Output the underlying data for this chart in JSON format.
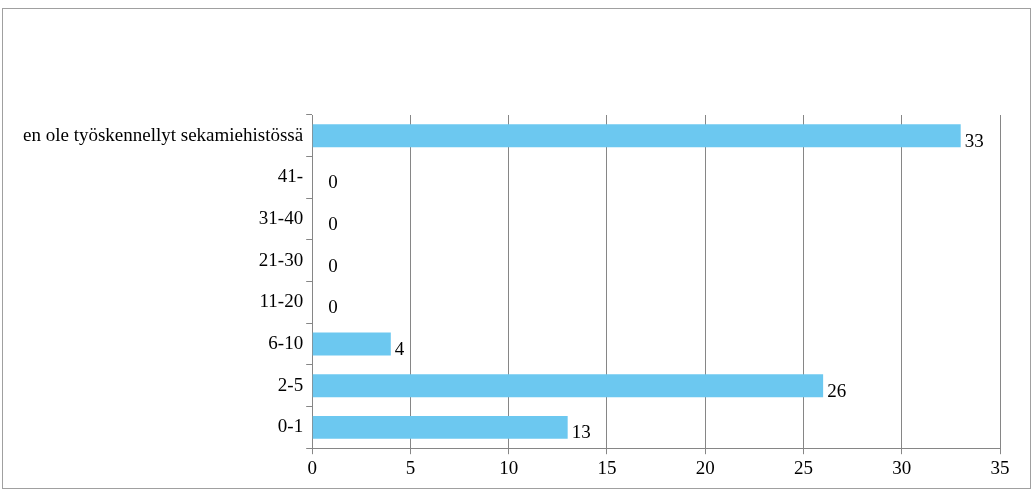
{
  "chart_data": {
    "type": "bar",
    "orientation": "horizontal",
    "categories": [
      "en ole työskennellyt sekamiehistössä",
      "41-",
      "31-40",
      "21-30",
      "11-20",
      "6-10",
      "2-5",
      "0-1"
    ],
    "values": [
      33,
      0,
      0,
      0,
      0,
      4,
      26,
      13
    ],
    "color": "#6cc8f0",
    "xlim": [
      0,
      35
    ],
    "xticks": [
      0,
      5,
      10,
      15,
      20,
      25,
      30,
      35
    ],
    "grid": "x",
    "data_labels": true
  }
}
